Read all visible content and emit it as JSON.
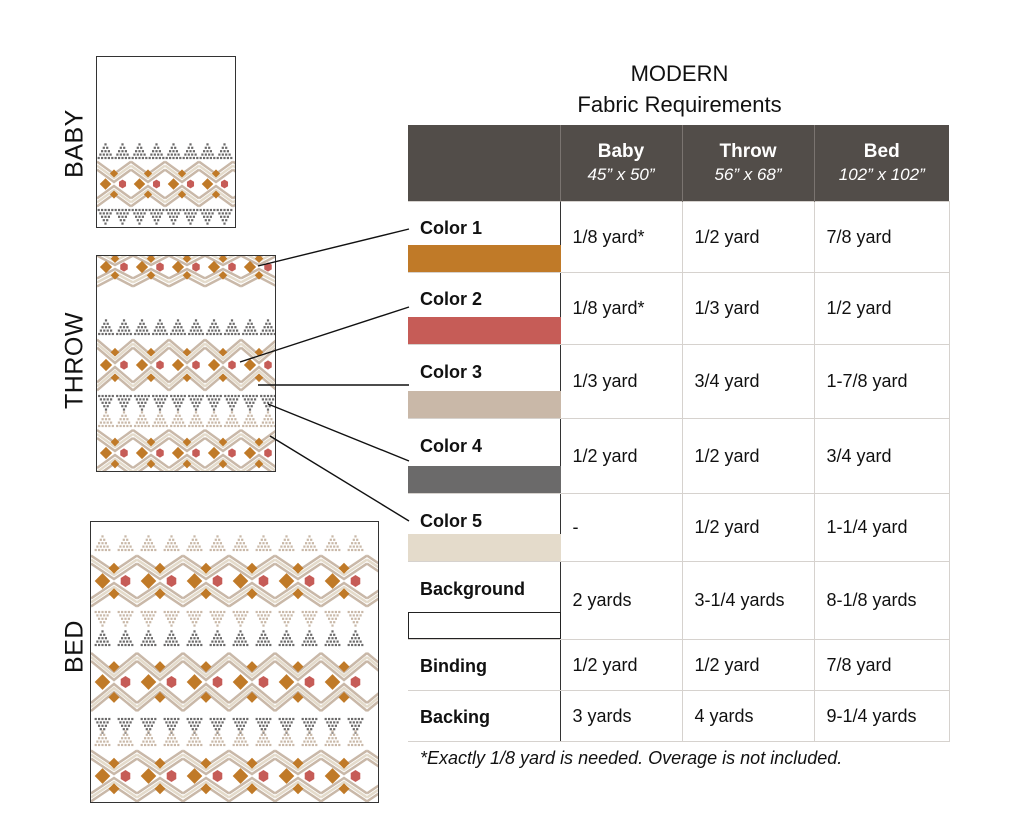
{
  "sizes_labels": [
    "BABY",
    "THROW",
    "BED"
  ],
  "title": "MODERN",
  "subtitle": "Fabric Requirements",
  "columns": [
    {
      "name": "Baby",
      "size": "45” x 50”"
    },
    {
      "name": "Throw",
      "size": "56” x 68”"
    },
    {
      "name": "Bed",
      "size": "102” x 102”"
    }
  ],
  "colors": {
    "color1": "#c07a28",
    "color2": "#c65c57",
    "color3": "#c9b8a8",
    "color4": "#6b6a6a",
    "color5": "#e4dbcb",
    "header": "#524d49"
  },
  "rows": [
    {
      "name": "Color 1",
      "swatch": "#c07a28",
      "values": [
        "1/8 yard*",
        "1/2 yard",
        "7/8 yard"
      ]
    },
    {
      "name": "Color 2",
      "swatch": "#c65c57",
      "values": [
        "1/8 yard*",
        "1/3 yard",
        "1/2 yard"
      ]
    },
    {
      "name": "Color 3",
      "swatch": "#c9b8a8",
      "values": [
        "1/3 yard",
        "3/4 yard",
        "1-7/8 yard"
      ]
    },
    {
      "name": "Color 4",
      "swatch": "#6b6a6a",
      "values": [
        "1/2 yard",
        "1/2 yard",
        "3/4 yard"
      ]
    },
    {
      "name": "Color 5",
      "swatch": "#e4dbcb",
      "values": [
        "-",
        "1/2 yard",
        "1-1/4 yard"
      ]
    },
    {
      "name": "Background",
      "swatch": "#ffffff",
      "values": [
        "2 yards",
        "3-1/4 yards",
        "8-1/8 yards"
      ]
    },
    {
      "name": "Binding",
      "swatch": "",
      "values": [
        "1/2 yard",
        "1/2 yard",
        "7/8 yard"
      ]
    },
    {
      "name": "Backing",
      "swatch": "",
      "values": [
        "3 yards",
        "4 yards",
        "9-1/4 yards"
      ]
    }
  ],
  "footnote": "*Exactly 1/8 yard is needed. Overage is not included."
}
